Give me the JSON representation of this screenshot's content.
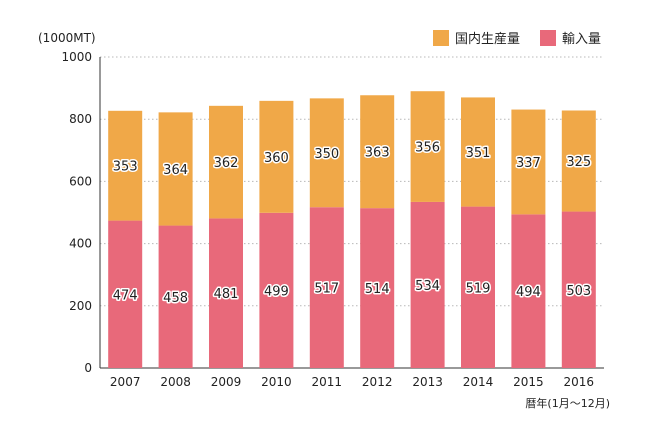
{
  "chart_data": {
    "type": "bar",
    "stacked": true,
    "unit_label": "(1000MT)",
    "xlabel": "暦年(1月〜12月)",
    "ylabel": "",
    "title": "",
    "ylim": [
      0,
      1000
    ],
    "yticks": [
      0,
      200,
      400,
      600,
      800,
      1000
    ],
    "grid": true,
    "legend_position": "top-right",
    "categories": [
      "2007",
      "2008",
      "2009",
      "2010",
      "2011",
      "2012",
      "2013",
      "2014",
      "2015",
      "2016"
    ],
    "series": [
      {
        "name": "輸入量",
        "color": "#e8697a",
        "values": [
          474,
          458,
          481,
          499,
          517,
          514,
          534,
          519,
          494,
          503
        ]
      },
      {
        "name": "国内生産量",
        "color": "#f0a848",
        "values": [
          353,
          364,
          362,
          360,
          350,
          363,
          356,
          351,
          337,
          325
        ]
      }
    ]
  }
}
